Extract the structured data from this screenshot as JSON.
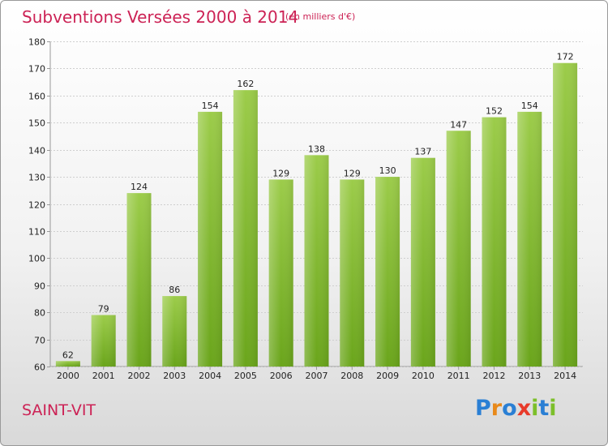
{
  "header": {
    "title": "Subventions Versées 2000 à 2014",
    "subtitle": "(en milliers d'€)"
  },
  "footer": {
    "town": "SAINT-VIT",
    "logo_text": "Proxiti"
  },
  "colors": {
    "title": "#cc2255",
    "bar_top": "#9ccc4a",
    "bar_bottom": "#6aa51b",
    "grid": "#cccccc",
    "axis_text": "#222222"
  },
  "chart_data": {
    "type": "bar",
    "title": "Subventions Versées 2000 à 2014",
    "subtitle": "(en milliers d'€)",
    "categories": [
      "2000",
      "2001",
      "2002",
      "2003",
      "2004",
      "2005",
      "2006",
      "2007",
      "2008",
      "2009",
      "2010",
      "2011",
      "2012",
      "2013",
      "2014"
    ],
    "values": [
      62,
      79,
      124,
      86,
      154,
      162,
      129,
      138,
      129,
      130,
      137,
      147,
      152,
      154,
      172
    ],
    "ylim": [
      60,
      180
    ],
    "yticks": [
      60,
      70,
      80,
      90,
      100,
      110,
      120,
      130,
      140,
      150,
      160,
      170,
      180
    ],
    "grid": true,
    "data_labels": true
  }
}
